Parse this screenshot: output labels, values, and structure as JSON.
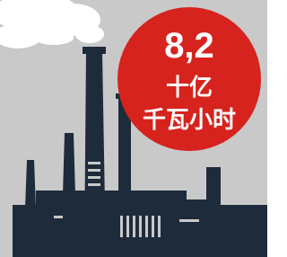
{
  "badge": {
    "value": "8,2",
    "unit_line1": "十亿",
    "unit_line2": "千瓦小时"
  }
}
